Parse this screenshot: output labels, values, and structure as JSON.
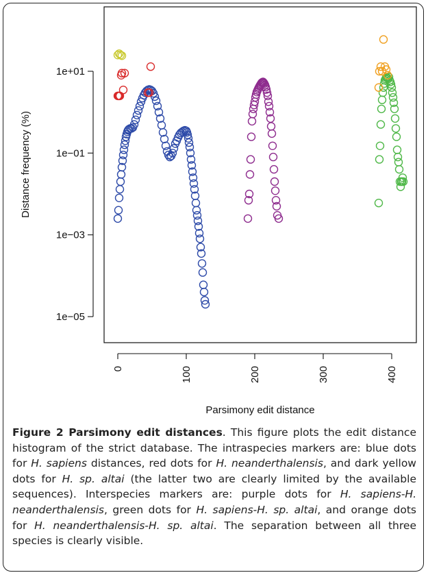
{
  "chart_data": {
    "type": "scatter",
    "ylabel": "Distance frequency (%)",
    "xlabel": "Parsimony edit distance",
    "y_scale": "log10",
    "x_ticks": [
      "0",
      "100",
      "200",
      "300",
      "400"
    ],
    "x_tick_values": [
      0,
      100,
      200,
      300,
      400
    ],
    "y_ticks": [
      "1e+01",
      "1e−01",
      "1e−03",
      "1e−05"
    ],
    "y_tick_values": [
      10,
      0.1,
      0.001,
      1e-05
    ],
    "xlim": [
      -5,
      425
    ],
    "ylim": [
      1e-05,
      300
    ],
    "marker": "open-circle",
    "series": [
      {
        "color": "#6b4fbf",
        "stroke": "#2d4aa8",
        "points": [
          [
            0,
            0.0025
          ],
          [
            1,
            0.004
          ],
          [
            2,
            0.008
          ],
          [
            3,
            0.013
          ],
          [
            4,
            0.02
          ],
          [
            5,
            0.03
          ],
          [
            6,
            0.045
          ],
          [
            7,
            0.065
          ],
          [
            8,
            0.09
          ],
          [
            9,
            0.12
          ],
          [
            10,
            0.16
          ],
          [
            11,
            0.2
          ],
          [
            12,
            0.25
          ],
          [
            13,
            0.29
          ],
          [
            14,
            0.33
          ],
          [
            15,
            0.36
          ],
          [
            16,
            0.38
          ],
          [
            18,
            0.4
          ],
          [
            20,
            0.4
          ],
          [
            22,
            0.42
          ],
          [
            24,
            0.5
          ],
          [
            26,
            0.65
          ],
          [
            28,
            0.85
          ],
          [
            30,
            1.1
          ],
          [
            32,
            1.4
          ],
          [
            34,
            1.8
          ],
          [
            36,
            2.2
          ],
          [
            38,
            2.6
          ],
          [
            40,
            3.0
          ],
          [
            42,
            3.3
          ],
          [
            44,
            3.5
          ],
          [
            46,
            3.6
          ],
          [
            48,
            3.5
          ],
          [
            50,
            3.3
          ],
          [
            52,
            2.9
          ],
          [
            54,
            2.4
          ],
          [
            56,
            1.9
          ],
          [
            58,
            1.4
          ],
          [
            60,
            1.0
          ],
          [
            62,
            0.7
          ],
          [
            64,
            0.48
          ],
          [
            66,
            0.32
          ],
          [
            68,
            0.22
          ],
          [
            70,
            0.15
          ],
          [
            72,
            0.11
          ],
          [
            74,
            0.09
          ],
          [
            76,
            0.08
          ],
          [
            78,
            0.085
          ],
          [
            80,
            0.1
          ],
          [
            82,
            0.13
          ],
          [
            84,
            0.17
          ],
          [
            86,
            0.2
          ],
          [
            88,
            0.24
          ],
          [
            90,
            0.28
          ],
          [
            92,
            0.31
          ],
          [
            94,
            0.33
          ],
          [
            96,
            0.35
          ],
          [
            98,
            0.36
          ],
          [
            100,
            0.35
          ],
          [
            101,
            0.32
          ],
          [
            102,
            0.28
          ],
          [
            103,
            0.23
          ],
          [
            104,
            0.18
          ],
          [
            105,
            0.14
          ],
          [
            106,
            0.1
          ],
          [
            107,
            0.07
          ],
          [
            108,
            0.05
          ],
          [
            109,
            0.035
          ],
          [
            110,
            0.025
          ],
          [
            111,
            0.018
          ],
          [
            112,
            0.013
          ],
          [
            113,
            0.009
          ],
          [
            114,
            0.006
          ],
          [
            115,
            0.004
          ],
          [
            116,
            0.003
          ],
          [
            117,
            0.0022
          ],
          [
            118,
            0.0016
          ],
          [
            119,
            0.0011
          ],
          [
            120,
            0.0008
          ],
          [
            121,
            0.0005
          ],
          [
            122,
            0.00035
          ],
          [
            123,
            0.0002
          ],
          [
            124,
            0.00012
          ],
          [
            125,
            6e-05
          ],
          [
            126,
            4e-05
          ],
          [
            127,
            2.5e-05
          ],
          [
            128,
            2e-05
          ]
        ]
      },
      {
        "color": "#d92b2b",
        "stroke": "#d92b2b",
        "points": [
          [
            0,
            2.5
          ],
          [
            1,
            2.5
          ],
          [
            2,
            2.5
          ],
          [
            3,
            2.5
          ],
          [
            5,
            8
          ],
          [
            6,
            9
          ],
          [
            8,
            3.5
          ],
          [
            10,
            9
          ],
          [
            44,
            3.0
          ],
          [
            46,
            3.0
          ],
          [
            48,
            13
          ]
        ]
      },
      {
        "color": "#c9c930",
        "stroke": "#c9c930",
        "points": [
          [
            0,
            25
          ],
          [
            2,
            27
          ],
          [
            4,
            25
          ],
          [
            6,
            24
          ]
        ]
      },
      {
        "color": "#8e2c8e",
        "stroke": "#8e2c8e",
        "points": [
          [
            190,
            0.0025
          ],
          [
            191,
            0.007
          ],
          [
            192,
            0.01
          ],
          [
            193,
            0.03
          ],
          [
            194,
            0.07
          ],
          [
            195,
            0.25
          ],
          [
            196,
            0.6
          ],
          [
            197,
            0.9
          ],
          [
            198,
            1.2
          ],
          [
            199,
            1.5
          ],
          [
            200,
            1.8
          ],
          [
            201,
            2.3
          ],
          [
            202,
            2.7
          ],
          [
            203,
            3.1
          ],
          [
            204,
            3.4
          ],
          [
            205,
            3.7
          ],
          [
            206,
            4.0
          ],
          [
            207,
            4.3
          ],
          [
            208,
            4.6
          ],
          [
            209,
            4.9
          ],
          [
            210,
            5.2
          ],
          [
            211,
            5.4
          ],
          [
            212,
            5.5
          ],
          [
            213,
            5.3
          ],
          [
            214,
            5.0
          ],
          [
            215,
            4.6
          ],
          [
            216,
            4.1
          ],
          [
            217,
            3.6
          ],
          [
            218,
            3.0
          ],
          [
            219,
            2.5
          ],
          [
            220,
            1.8
          ],
          [
            221,
            1.4
          ],
          [
            222,
            1.0
          ],
          [
            223,
            0.7
          ],
          [
            224,
            0.45
          ],
          [
            225,
            0.3
          ],
          [
            226,
            0.15
          ],
          [
            227,
            0.08
          ],
          [
            228,
            0.04
          ],
          [
            229,
            0.02
          ],
          [
            230,
            0.012
          ],
          [
            231,
            0.007
          ],
          [
            232,
            0.005
          ],
          [
            233,
            0.003
          ],
          [
            235,
            0.0025
          ]
        ]
      },
      {
        "color": "#4fb848",
        "stroke": "#4fb848",
        "points": [
          [
            381,
            0.006
          ],
          [
            382,
            0.07
          ],
          [
            383,
            0.15
          ],
          [
            384,
            0.5
          ],
          [
            385,
            1.2
          ],
          [
            386,
            2.0
          ],
          [
            387,
            3.0
          ],
          [
            388,
            4.0
          ],
          [
            389,
            5.0
          ],
          [
            390,
            6.0
          ],
          [
            391,
            6.5
          ],
          [
            392,
            7.0
          ],
          [
            393,
            7.0
          ],
          [
            394,
            6.8
          ],
          [
            395,
            6.5
          ],
          [
            396,
            7.2
          ],
          [
            397,
            6.0
          ],
          [
            398,
            5.5
          ],
          [
            399,
            4.8
          ],
          [
            400,
            4.0
          ],
          [
            401,
            3.0
          ],
          [
            402,
            2.3
          ],
          [
            403,
            1.7
          ],
          [
            404,
            1.2
          ],
          [
            405,
            0.7
          ],
          [
            406,
            0.4
          ],
          [
            407,
            0.25
          ],
          [
            408,
            0.12
          ],
          [
            409,
            0.08
          ],
          [
            410,
            0.06
          ],
          [
            411,
            0.04
          ],
          [
            412,
            0.02
          ],
          [
            413,
            0.015
          ],
          [
            414,
            0.02
          ],
          [
            415,
            0.02
          ],
          [
            416,
            0.025
          ],
          [
            417,
            0.02
          ]
        ]
      },
      {
        "color": "#f5a623",
        "stroke": "#f0a020",
        "points": [
          [
            381,
            4.0
          ],
          [
            382,
            10
          ],
          [
            384,
            13
          ],
          [
            386,
            10
          ],
          [
            388,
            60
          ],
          [
            390,
            13
          ],
          [
            392,
            11
          ],
          [
            394,
            8
          ]
        ]
      }
    ]
  },
  "caption": {
    "label": "Figure 2 Parsimony edit distances",
    "text_1": ". This figure plots the edit distance histogram of the strict database. The intraspecies markers are: blue dots for ",
    "sp1": "H. sapiens",
    "text_2": " distances, red dots for ",
    "sp2": "H. neanderthalensis",
    "text_3": ", and dark yellow dots for ",
    "sp3": "H. sp. altai",
    "text_4": " (the latter two are clearly limited by the available sequences). Interspecies markers are: purple dots for ",
    "sp4": "H. sapiens-H. neanderthalensis",
    "text_5": ", green dots for ",
    "sp5": "H. sapiens-H. sp. altai",
    "text_6": ", and orange dots for ",
    "sp6": "H. neanderthalensis-H. sp. altai",
    "text_7": ". The separation between all three species is clearly visible."
  }
}
